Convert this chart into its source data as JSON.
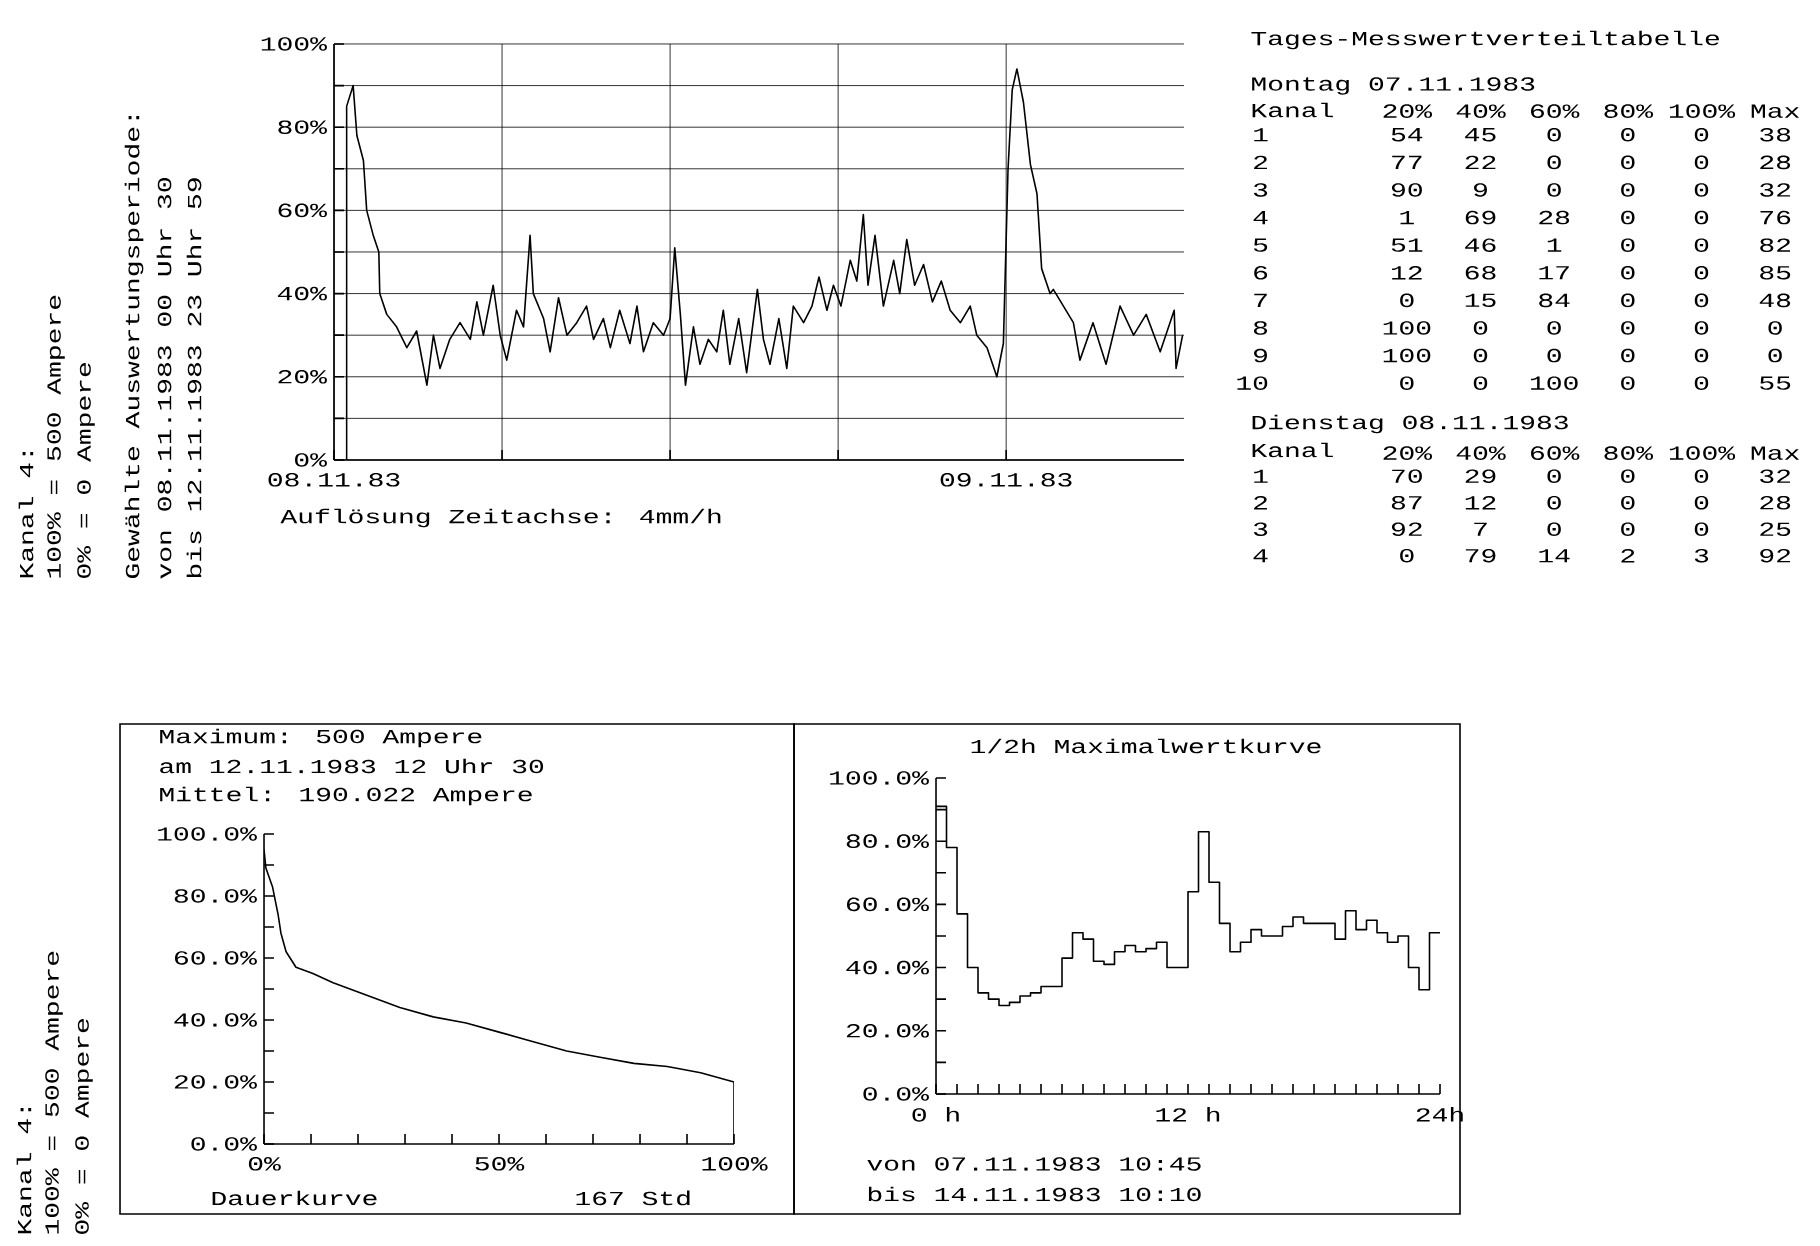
{
  "chart_data": [
    {
      "type": "line",
      "xlabel": "Auflösung Zeitachse: 4mm/h",
      "annotations": [
        "Kanal 4:",
        "100% = 500 Ampere",
        "0% = 0 Ampere",
        "Gewählte Auswertungsperiode:",
        "von 08.11.1983 00 Uhr 30",
        "bis 12.11.1983 23 Uhr 59"
      ],
      "x": [
        "1983-11-08T00:27",
        "1983-11-08T00:27",
        "1983-11-08T00:41",
        "1983-11-08T00:49",
        "1983-11-08T01:03",
        "1983-11-08T01:10",
        "1983-11-08T01:24",
        "1983-11-08T01:36",
        "1983-11-08T01:38",
        "1983-11-08T01:53",
        "1983-11-08T02:14",
        "1983-11-08T02:36",
        "1983-11-08T02:57",
        "1983-11-08T03:19",
        "1983-11-08T03:33",
        "1983-11-08T03:47",
        "1983-11-08T04:08",
        "1983-11-08T04:30",
        "1983-11-08T04:52",
        "1983-11-08T05:06",
        "1983-11-08T05:20",
        "1983-11-08T05:41",
        "1983-11-08T05:56",
        "1983-11-08T06:10",
        "1983-11-08T06:31",
        "1983-11-08T06:46",
        "1983-11-08T07:00",
        "1983-11-08T07:07",
        "1983-11-08T07:29",
        "1983-11-08T07:43",
        "1983-11-08T08:01",
        "1983-11-08T08:19",
        "1983-11-08T08:40",
        "1983-11-08T09:01",
        "1983-11-08T09:16",
        "1983-11-08T09:37",
        "1983-11-08T09:52",
        "1983-11-08T10:12",
        "1983-11-08T10:34",
        "1983-11-08T10:49",
        "1983-11-08T11:03",
        "1983-11-08T11:24",
        "1983-11-08T11:46",
        "1983-11-08T12:00",
        "1983-11-08T12:10",
        "1983-11-08T12:22",
        "1983-11-08T12:33",
        "1983-11-08T12:50",
        "1983-11-08T13:04",
        "1983-11-08T13:22",
        "1983-11-08T13:40",
        "1983-11-08T13:54",
        "1983-11-08T14:08",
        "1983-11-08T14:27",
        "1983-11-08T14:44",
        "1983-11-08T15:07",
        "1983-11-08T15:20",
        "1983-11-08T15:34",
        "1983-11-08T15:53",
        "1983-11-08T16:10",
        "1983-11-08T16:24",
        "1983-11-08T16:46",
        "1983-11-08T17:04",
        "1983-11-08T17:19",
        "1983-11-08T17:36",
        "1983-11-08T17:50",
        "1983-11-08T18:06",
        "1983-11-08T18:26",
        "1983-11-08T18:40",
        "1983-11-08T18:54",
        "1983-11-08T19:04",
        "1983-11-08T19:19",
        "1983-11-08T19:37",
        "1983-11-08T19:59",
        "1983-11-08T20:12",
        "1983-11-08T20:27",
        "1983-11-08T20:44",
        "1983-11-08T21:03",
        "1983-11-08T21:22",
        "1983-11-08T21:41",
        "1983-11-08T22:00",
        "1983-11-08T22:22",
        "1983-11-08T22:43",
        "1983-11-08T22:57",
        "1983-11-08T23:19",
        "1983-11-08T23:40",
        "1983-11-08T23:54",
        "1983-11-09T00:04",
        "1983-11-09T00:13",
        "1983-11-09T00:23",
        "1983-11-09T00:37",
        "1983-11-09T00:52",
        "1983-11-09T01:06",
        "1983-11-09T01:16",
        "1983-11-09T01:34",
        "1983-11-09T01:41",
        "1983-11-09T02:24",
        "1983-11-09T02:38",
        "1983-11-09T03:06",
        "1983-11-09T03:34",
        "1983-11-09T04:04",
        "1983-11-09T04:33",
        "1983-11-09T05:00",
        "1983-11-09T05:30",
        "1983-11-09T06:00",
        "1983-11-09T06:04",
        "1983-11-09T06:18"
      ],
      "values": [
        0,
        85,
        90,
        78,
        72,
        60,
        54,
        50,
        40,
        35,
        32,
        27,
        31,
        18,
        30,
        22,
        29,
        33,
        29,
        38,
        30,
        42,
        30,
        24,
        36,
        32,
        54,
        40,
        34,
        26,
        39,
        30,
        33,
        37,
        29,
        34,
        27,
        36,
        28,
        37,
        26,
        33,
        30,
        34,
        51,
        35,
        18,
        32,
        23,
        29,
        26,
        36,
        23,
        34,
        21,
        41,
        29,
        23,
        34,
        22,
        37,
        33,
        37,
        44,
        36,
        42,
        37,
        48,
        43,
        59,
        42,
        54,
        37,
        48,
        40,
        53,
        42,
        47,
        38,
        43,
        36,
        33,
        37,
        30,
        27,
        20,
        28,
        70,
        89,
        94,
        86,
        71,
        64,
        46,
        40,
        41,
        33,
        24,
        33,
        23,
        37,
        30,
        35,
        26,
        36,
        22,
        30
      ],
      "color": "#000000",
      "xlim": [
        "1983-11-08T00:00",
        "1983-11-09T06:21"
      ],
      "ylim": [
        0,
        100
      ],
      "xticks": [
        {
          "value": "1983-11-08",
          "label": "08.11.83"
        },
        {
          "value": "1983-11-08T06:00",
          "label": null
        },
        {
          "value": "1983-11-08T12:00",
          "label": null
        },
        {
          "value": "1983-11-08T18:00",
          "label": null
        },
        {
          "value": "1983-11-09",
          "label": "09.11.83"
        }
      ],
      "yticks": [
        {
          "value": 0,
          "label": "0%"
        },
        {
          "value": 10,
          "label": null
        },
        {
          "value": 20,
          "label": "20%"
        },
        {
          "value": 30,
          "label": null
        },
        {
          "value": 40,
          "label": "40%"
        },
        {
          "value": 50,
          "label": null
        },
        {
          "value": 60,
          "label": "60%"
        },
        {
          "value": 70,
          "label": null
        },
        {
          "value": 80,
          "label": "80%"
        },
        {
          "value": 90,
          "label": null
        },
        {
          "value": 100,
          "label": "100%"
        }
      ],
      "grid": true
    },
    {
      "type": "heatmap",
      "title": "Tages-Messwertverteiltabelle",
      "subtitle": "Montag 07.11.1983",
      "ylabel": "Kanal",
      "categories": [
        "20%",
        "40%",
        "60%",
        "80%",
        "100%",
        "Max"
      ],
      "y_categories": [
        "1",
        "2",
        "3",
        "4",
        "5",
        "6",
        "7",
        "8",
        "9",
        "10"
      ],
      "cells": [
        [
          54,
          45,
          0,
          0,
          0,
          38
        ],
        [
          77,
          22,
          0,
          0,
          0,
          28
        ],
        [
          90,
          9,
          0,
          0,
          0,
          32
        ],
        [
          1,
          69,
          28,
          0,
          0,
          76
        ],
        [
          51,
          46,
          1,
          0,
          0,
          82
        ],
        [
          12,
          68,
          17,
          0,
          0,
          85
        ],
        [
          0,
          15,
          84,
          0,
          0,
          48
        ],
        [
          100,
          0,
          0,
          0,
          0,
          0
        ],
        [
          100,
          0,
          0,
          0,
          0,
          0
        ],
        [
          0,
          0,
          100,
          0,
          0,
          55
        ]
      ],
      "data_labels": true
    },
    {
      "type": "heatmap",
      "subtitle": "Dienstag 08.11.1983",
      "ylabel": "Kanal",
      "categories": [
        "20%",
        "40%",
        "60%",
        "80%",
        "100%",
        "Max"
      ],
      "y_categories": [
        "1",
        "2",
        "3",
        "4"
      ],
      "cells": [
        [
          70,
          29,
          0,
          0,
          0,
          32
        ],
        [
          87,
          12,
          0,
          0,
          0,
          28
        ],
        [
          92,
          7,
          0,
          0,
          0,
          25
        ],
        [
          0,
          79,
          14,
          2,
          3,
          92
        ]
      ],
      "data_labels": true
    },
    {
      "type": "line",
      "title": "Maximum: 500 Ampere",
      "subtitle": "am 12.11.1983 12 Uhr 30",
      "xlabel": "Dauerkurve",
      "annotations": [
        "Mittel: 190.022 Ampere",
        "167 Std",
        "Kanal 4:",
        "100% = 500 Ampere",
        "0% = 0 Ampere"
      ],
      "x": [
        0,
        0.4,
        1.8,
        3,
        3.6,
        4.7,
        6.8,
        10.4,
        14.7,
        21.8,
        28.9,
        36,
        43,
        50.2,
        57.3,
        64.4,
        71.5,
        78.7,
        85.8,
        92.9,
        100,
        100
      ],
      "values": [
        95,
        89,
        83,
        74,
        68,
        62,
        57,
        55,
        52,
        48,
        44,
        41,
        39,
        36,
        33,
        30,
        28,
        26,
        25,
        23,
        20,
        0
      ],
      "color": "#000000",
      "xlim": [
        0,
        100
      ],
      "ylim": [
        0,
        100
      ],
      "xticks": [
        {
          "value": 0,
          "label": "0%"
        },
        {
          "value": 10,
          "label": null
        },
        {
          "value": 20,
          "label": null
        },
        {
          "value": 30,
          "label": null
        },
        {
          "value": 40,
          "label": null
        },
        {
          "value": 50,
          "label": "50%"
        },
        {
          "value": 60,
          "label": null
        },
        {
          "value": 70,
          "label": null
        },
        {
          "value": 80,
          "label": null
        },
        {
          "value": 90,
          "label": null
        },
        {
          "value": 100,
          "label": "100%"
        }
      ],
      "yticks": [
        {
          "value": 0,
          "label": "0.0%"
        },
        {
          "value": 10,
          "label": null
        },
        {
          "value": 20,
          "label": "20.0%"
        },
        {
          "value": 30,
          "label": null
        },
        {
          "value": 40,
          "label": "40.0%"
        },
        {
          "value": 50,
          "label": null
        },
        {
          "value": 60,
          "label": "60.0%"
        },
        {
          "value": 70,
          "label": null
        },
        {
          "value": 80,
          "label": "80.0%"
        },
        {
          "value": 90,
          "label": null
        },
        {
          "value": 100,
          "label": "100.0%"
        }
      ]
    },
    {
      "type": "step",
      "title": "1/2h Maximalwertkurve",
      "annotations": [
        "von 07.11.1983 10:45",
        "bis 14.11.1983 10:10"
      ],
      "x": [
        0,
        0.5,
        1,
        1.5,
        2,
        2.5,
        3,
        3.5,
        4,
        4.5,
        5,
        5.5,
        6,
        6.5,
        7,
        7.5,
        8,
        8.5,
        9,
        9.5,
        10,
        10.5,
        11,
        11.5,
        12,
        12.5,
        13,
        13.5,
        14,
        14.5,
        15,
        15.5,
        16,
        16.5,
        17,
        17.5,
        18,
        18.5,
        19,
        19.5,
        20,
        20.5,
        21,
        21.5,
        22,
        22.5,
        23,
        23.5,
        24
      ],
      "values": [
        91,
        78,
        57,
        40,
        32,
        30,
        28,
        29,
        31,
        32,
        34,
        34,
        43,
        51,
        49,
        42,
        41,
        45,
        47,
        45,
        46,
        48,
        40,
        40,
        64,
        83,
        67,
        54,
        45,
        48,
        52,
        50,
        50,
        53,
        56,
        54,
        54,
        54,
        49,
        58,
        52,
        55,
        51,
        48,
        50,
        40,
        33,
        51,
        51
      ],
      "color": "#000000",
      "xlim": [
        0,
        24
      ],
      "ylim": [
        0,
        100
      ],
      "xticks": [
        {
          "value": 0,
          "label": "0 h"
        },
        {
          "value": 1,
          "label": null
        },
        {
          "value": 2,
          "label": null
        },
        {
          "value": 3,
          "label": null
        },
        {
          "value": 4,
          "label": null
        },
        {
          "value": 5,
          "label": null
        },
        {
          "value": 6,
          "label": null
        },
        {
          "value": 7,
          "label": null
        },
        {
          "value": 8,
          "label": null
        },
        {
          "value": 9,
          "label": null
        },
        {
          "value": 10,
          "label": null
        },
        {
          "value": 11,
          "label": null
        },
        {
          "value": 12,
          "label": "12 h"
        },
        {
          "value": 13,
          "label": null
        },
        {
          "value": 14,
          "label": null
        },
        {
          "value": 15,
          "label": null
        },
        {
          "value": 16,
          "label": null
        },
        {
          "value": 17,
          "label": null
        },
        {
          "value": 18,
          "label": null
        },
        {
          "value": 19,
          "label": null
        },
        {
          "value": 20,
          "label": null
        },
        {
          "value": 21,
          "label": null
        },
        {
          "value": 22,
          "label": null
        },
        {
          "value": 23,
          "label": null
        },
        {
          "value": 24,
          "label": "24h"
        }
      ],
      "yticks": [
        {
          "value": 0,
          "label": "0.0%"
        },
        {
          "value": 10,
          "label": null
        },
        {
          "value": 20,
          "label": "20.0%"
        },
        {
          "value": 30,
          "label": null
        },
        {
          "value": 40,
          "label": "40.0%"
        },
        {
          "value": 50,
          "label": null
        },
        {
          "value": 60,
          "label": "60.0%"
        },
        {
          "value": 70,
          "label": null
        },
        {
          "value": 80,
          "label": "80.0%"
        },
        {
          "value": 90,
          "label": null
        },
        {
          "value": 100,
          "label": "100.0%"
        }
      ]
    }
  ]
}
